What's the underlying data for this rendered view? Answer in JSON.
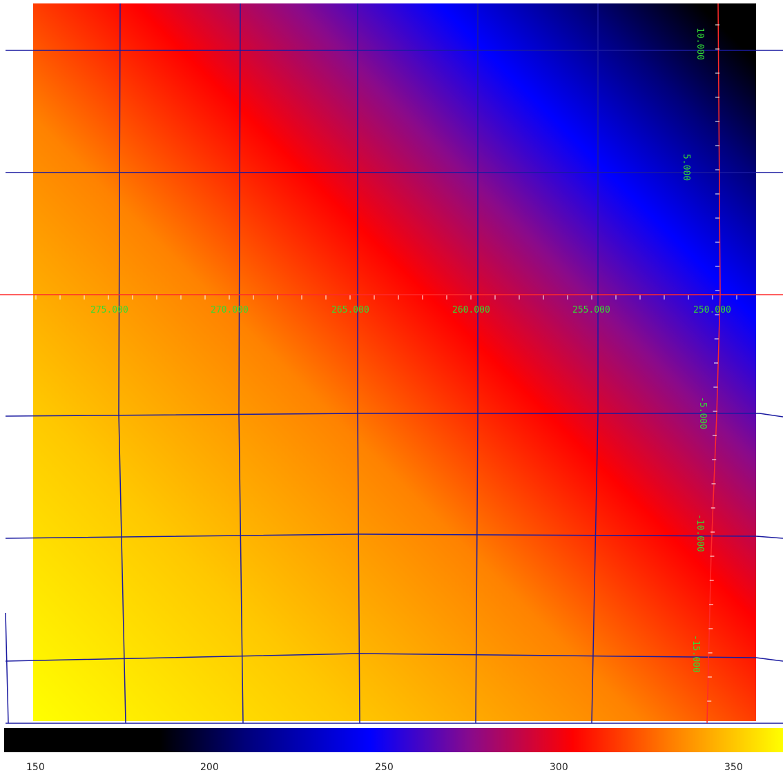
{
  "map": {
    "grid_color": "#1a1aa0",
    "axis_color": "#ff2a2a",
    "label_color": "#33dd33",
    "ra_labels": [
      {
        "text": "275.000"
      },
      {
        "text": "270.000"
      },
      {
        "text": "265.000"
      },
      {
        "text": "260.000"
      },
      {
        "text": "255.000"
      },
      {
        "text": "250.000"
      }
    ],
    "dec_labels": [
      {
        "text": "10.000"
      },
      {
        "text": "5.000"
      },
      {
        "text": "-5.000"
      },
      {
        "text": "-10.000"
      },
      {
        "text": "-15.000"
      }
    ]
  },
  "colorbar": {
    "colormap": [
      "#000000",
      "#00007a",
      "#0000ff",
      "#8a0a8a",
      "#ff0000",
      "#ff7800",
      "#ffd200",
      "#ffff00"
    ],
    "tick_labels": [
      "150",
      "200",
      "250",
      "300",
      "350"
    ]
  }
}
